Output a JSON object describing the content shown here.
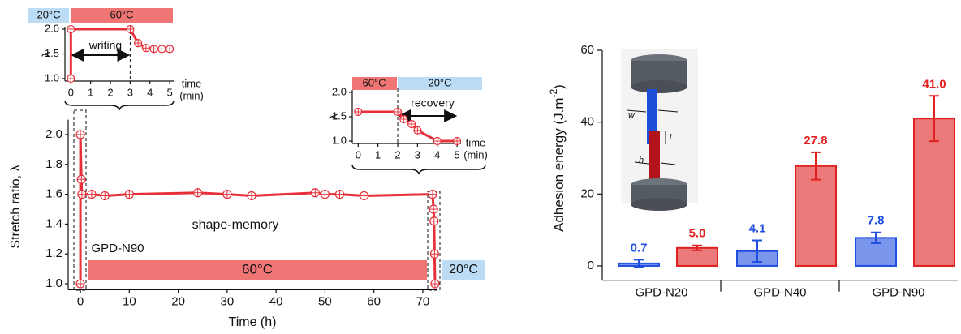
{
  "chart_data": [
    {
      "type": "line",
      "xlabel": "Time (h)",
      "ylabel": "Stretch ratio, λ",
      "x": [
        0,
        0,
        0.2,
        0.3,
        2.3,
        5,
        10,
        24,
        30,
        35,
        48,
        50,
        53,
        58,
        72,
        72.2,
        72.3,
        72.4,
        72.5
      ],
      "series": [
        {
          "color": "#e8303a",
          "values": [
            1.0,
            2.0,
            1.7,
            1.6,
            1.6,
            1.59,
            1.6,
            1.61,
            1.6,
            1.59,
            1.61,
            1.6,
            1.6,
            1.59,
            1.6,
            1.5,
            1.42,
            1.2,
            1.0
          ]
        }
      ],
      "xlim": [
        -2.5,
        73
      ],
      "ylim": [
        0.96,
        2.1
      ],
      "xticks": [
        0,
        10,
        20,
        30,
        40,
        50,
        60,
        70
      ],
      "yticks": [
        {
          "value": 1.0,
          "label": "1.0"
        },
        {
          "value": 1.2,
          "label": "1.2"
        },
        {
          "value": 1.4,
          "label": "1.4"
        },
        {
          "value": 1.6,
          "label": "1.6"
        },
        {
          "value": 1.8,
          "label": "1.8"
        },
        {
          "value": 2.0,
          "label": "2.0"
        }
      ],
      "annotations": [
        "shape-memory",
        "GPD-N90",
        "60°C",
        "20°C"
      ]
    },
    {
      "type": "line",
      "xlabel": [
        "time",
        "(min)"
      ],
      "ylabel": "λ",
      "x": [
        0,
        0,
        3,
        3.4,
        3.8,
        4.2,
        4.6,
        5
      ],
      "series": [
        {
          "color": "#e8303a",
          "values": [
            1.0,
            2.0,
            2.0,
            1.72,
            1.62,
            1.6,
            1.6,
            1.6
          ]
        }
      ],
      "xlim": [
        -0.3,
        5.2
      ],
      "ylim": [
        0.95,
        2.05
      ],
      "xticks": [
        0,
        1,
        2,
        3,
        4,
        5
      ],
      "yticks": [
        {
          "value": 1.0,
          "label": "1.0"
        },
        {
          "value": 1.5,
          "label": "1.5"
        },
        {
          "value": 2.0,
          "label": "2.0"
        }
      ],
      "vlines": [
        3
      ],
      "annotations": [
        "20°C",
        "60°C",
        "writing"
      ]
    },
    {
      "type": "line",
      "xlabel": [
        "time",
        "(min)"
      ],
      "ylabel": "λ",
      "x": [
        0,
        2,
        2.3,
        2.7,
        3,
        4,
        5
      ],
      "series": [
        {
          "color": "#e8303a",
          "values": [
            1.6,
            1.6,
            1.45,
            1.35,
            1.22,
            1.0,
            1.0
          ]
        }
      ],
      "xlim": [
        -0.3,
        5.2
      ],
      "ylim": [
        0.95,
        2.05
      ],
      "xticks": [
        0,
        1,
        2,
        3,
        4,
        5
      ],
      "yticks": [
        {
          "value": 1.0,
          "label": "1.0"
        },
        {
          "value": 1.5,
          "label": "1.5"
        },
        {
          "value": 2.0,
          "label": "2.0"
        }
      ],
      "vlines": [
        2
      ],
      "annotations": [
        "60°C",
        "20°C",
        "recovery"
      ]
    },
    {
      "type": "bar",
      "ylabel": [
        "Adhesion energy (J.m",
        "-2",
        ")"
      ],
      "categories": [
        "GPD-N20",
        "GPD-N40",
        "GPD-N90"
      ],
      "series": [
        {
          "color": "#1f4fe0",
          "values": [
            0.7,
            4.1,
            7.8
          ],
          "errors": [
            1.0,
            3.0,
            1.5
          ],
          "value_labels": [
            "0.7",
            "4.1",
            "7.8"
          ]
        },
        {
          "color": "#e02020",
          "values": [
            5.0,
            27.8,
            41.0
          ],
          "errors": [
            0.7,
            3.8,
            6.3
          ],
          "value_labels": [
            "5.0",
            "27.8",
            "41.0"
          ]
        }
      ],
      "ylim": [
        -4,
        60
      ],
      "yticks": [
        0,
        20,
        40,
        60
      ],
      "annotations": [
        "w",
        "l",
        "h"
      ]
    }
  ]
}
